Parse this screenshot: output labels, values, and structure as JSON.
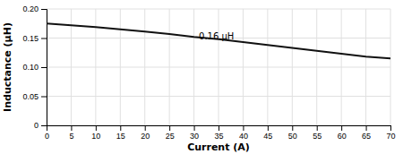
{
  "chart_data": {
    "type": "line",
    "xlabel": "Current (A)",
    "ylabel": "Inductance (μH)",
    "x": [
      0,
      5,
      10,
      15,
      20,
      25,
      30,
      35,
      40,
      45,
      50,
      55,
      60,
      65,
      70
    ],
    "values": [
      0.175,
      0.172,
      0.169,
      0.165,
      0.161,
      0.157,
      0.152,
      0.148,
      0.143,
      0.138,
      0.133,
      0.128,
      0.123,
      0.118,
      0.115
    ],
    "color": "#111111",
    "xlim": [
      0,
      70
    ],
    "ylim": [
      0,
      0.2
    ],
    "xticks": [
      0,
      5,
      10,
      15,
      20,
      25,
      30,
      35,
      40,
      45,
      50,
      55,
      60,
      65,
      70
    ],
    "yticks": [
      0,
      0.05,
      {
        "value": 0.1,
        "label": "0.10"
      },
      0.15,
      {
        "value": 0.2,
        "label": "0.20"
      }
    ],
    "annotations": [
      {
        "text": "0.16 μH",
        "x": 31,
        "y": 0.148
      }
    ],
    "grid": true
  }
}
